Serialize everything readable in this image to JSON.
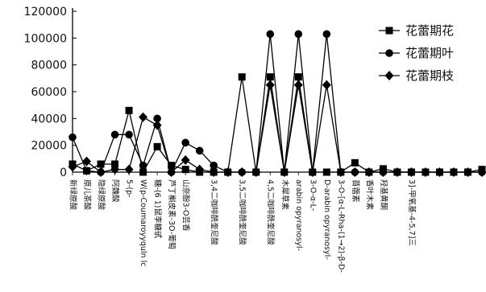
{
  "chart_data": {
    "type": "line",
    "ylim": [
      0,
      120000
    ],
    "yticks": [
      0,
      20000,
      40000,
      60000,
      80000,
      100000,
      120000
    ],
    "ytick_labels": [
      "0",
      "20000",
      "40000",
      "60000",
      "80000",
      "100000",
      "120000"
    ],
    "categories": [
      "新绿原酸",
      "原儿茶酸",
      "隐绿原酸",
      "阿魏酸",
      "5-(p-",
      "W(p-Coumaroyyquln lc",
      "糖-(6 1)鼠李糖甙",
      "芦丁槲皮素-3O-葡萄",
      "山奈酚3-O芸香",
      "",
      "3,4二咖啡酰奎尼酸",
      "",
      "3,5二咖啡酰奎尼酸",
      "",
      "4,5二咖啡酰奎尼酸",
      "木犀草素",
      "arabin opyranosyl-",
      "3-O-α-L-",
      "D-arabin opyranosyl-",
      "3-O-[α-L-Rha-(1→2)-β-D-",
      "苜蓿素",
      "香叶木素",
      "羟基黄酮",
      "",
      "3]-甲氧基-4-5,7]三",
      "",
      "",
      "",
      "",
      ""
    ],
    "series": [
      {
        "name": "花蕾期花",
        "marker": "square",
        "values": [
          6000,
          1000,
          6000,
          6000,
          46000,
          0,
          19000,
          5000,
          2000,
          0,
          0,
          0,
          71000,
          0,
          71000,
          0,
          71000,
          0,
          0,
          0,
          7000,
          0,
          2500,
          0,
          0,
          0,
          0,
          0,
          0,
          2000
        ]
      },
      {
        "name": "花蕾期叶",
        "marker": "circle",
        "values": [
          26000,
          1000,
          0,
          28000,
          28000,
          5000,
          40000,
          0,
          22000,
          16000,
          5000,
          0,
          0,
          0,
          103000,
          0,
          103000,
          0,
          103000,
          0,
          0,
          0,
          0,
          0,
          0,
          0,
          0,
          0,
          0,
          0
        ]
      },
      {
        "name": "花蕾期枝",
        "marker": "diamond",
        "values": [
          4000,
          8000,
          0,
          2000,
          2000,
          41000,
          35000,
          0,
          9000,
          2000,
          0,
          0,
          0,
          0,
          65000,
          0,
          65000,
          0,
          65000,
          0,
          0,
          0,
          0,
          0,
          0,
          0,
          0,
          0,
          0,
          0
        ]
      }
    ],
    "legend_position": "top-right",
    "grid": false
  }
}
